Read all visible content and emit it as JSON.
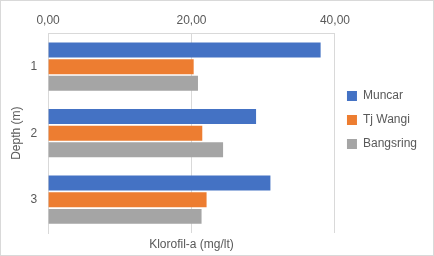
{
  "chart_data": {
    "type": "bar",
    "orientation": "horizontal",
    "xlabel": "Klorofil-a (mg/lt)",
    "ylabel": "Depth (m)",
    "categories": [
      "1",
      "2",
      "3"
    ],
    "series": [
      {
        "name": "Muncar",
        "color": "#4472c4",
        "values": [
          38.0,
          29.0,
          31.0
        ]
      },
      {
        "name": "Tj Wangi",
        "color": "#ed7d31",
        "values": [
          20.3,
          21.5,
          22.1
        ]
      },
      {
        "name": "Bangsring",
        "color": "#a5a5a5",
        "values": [
          20.9,
          24.4,
          21.4
        ]
      }
    ],
    "xlim": [
      0,
      40
    ],
    "xticks": [
      {
        "value": 0,
        "label": "0,00"
      },
      {
        "value": 20,
        "label": "20,00"
      },
      {
        "value": 40,
        "label": "40,00"
      }
    ],
    "grid": true,
    "legend": "right"
  }
}
